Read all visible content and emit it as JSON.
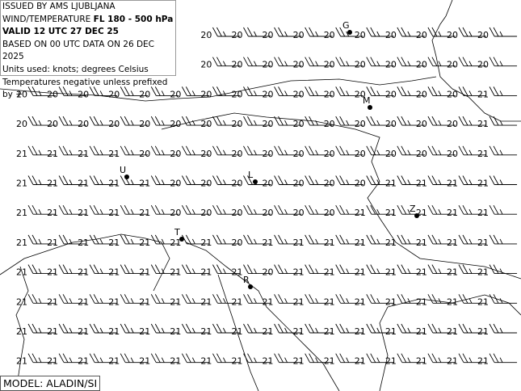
{
  "header": {
    "issued": "ISSUED BY AMS LJUBLJANA",
    "product_prefix": "WIND/TEMPERATURE",
    "product_levels": "FL 180 - 500 hPa",
    "valid": "VALID 12 UTC 27 DEC 25",
    "based_on": "BASED ON 00 UTC DATA ON 26 DEC 2025",
    "units": "Units used: knots; degrees Celsius",
    "note": "Temperatures negative unless prefixed by +"
  },
  "model": "MODEL: ALADIN/SI",
  "stations": [
    {
      "label": "G"
    },
    {
      "label": "M"
    },
    {
      "label": "U"
    },
    {
      "label": "L"
    },
    {
      "label": "Z"
    },
    {
      "label": "T"
    },
    {
      "label": "R"
    }
  ],
  "temperatures": [
    [
      null,
      null,
      null,
      null,
      null,
      null,
      20,
      20,
      20,
      20,
      20,
      20,
      20,
      20,
      20,
      20
    ],
    [
      null,
      null,
      null,
      null,
      null,
      null,
      20,
      20,
      20,
      20,
      20,
      20,
      20,
      20,
      20,
      20
    ],
    [
      20,
      20,
      20,
      20,
      20,
      20,
      20,
      20,
      20,
      20,
      20,
      20,
      20,
      20,
      20,
      21
    ],
    [
      20,
      20,
      20,
      20,
      20,
      20,
      20,
      20,
      20,
      20,
      20,
      20,
      20,
      20,
      20,
      21
    ],
    [
      21,
      21,
      21,
      21,
      20,
      20,
      20,
      20,
      20,
      20,
      20,
      20,
      20,
      20,
      20,
      21
    ],
    [
      21,
      21,
      21,
      21,
      21,
      20,
      20,
      20,
      20,
      20,
      20,
      20,
      21,
      21,
      21,
      21
    ],
    [
      21,
      21,
      21,
      21,
      21,
      20,
      20,
      20,
      20,
      20,
      20,
      21,
      21,
      21,
      21,
      21
    ],
    [
      21,
      21,
      21,
      21,
      21,
      21,
      21,
      20,
      21,
      21,
      21,
      21,
      21,
      21,
      21,
      21
    ],
    [
      21,
      21,
      21,
      21,
      21,
      21,
      21,
      21,
      20,
      21,
      21,
      21,
      21,
      21,
      21,
      21
    ],
    [
      21,
      21,
      21,
      21,
      21,
      21,
      21,
      21,
      21,
      21,
      21,
      21,
      21,
      21,
      21,
      21
    ],
    [
      21,
      21,
      21,
      21,
      21,
      21,
      21,
      21,
      21,
      21,
      21,
      21,
      21,
      21,
      21,
      21
    ],
    [
      21,
      21,
      21,
      21,
      21,
      21,
      21,
      21,
      21,
      21,
      21,
      21,
      21,
      21,
      21,
      21
    ]
  ]
}
